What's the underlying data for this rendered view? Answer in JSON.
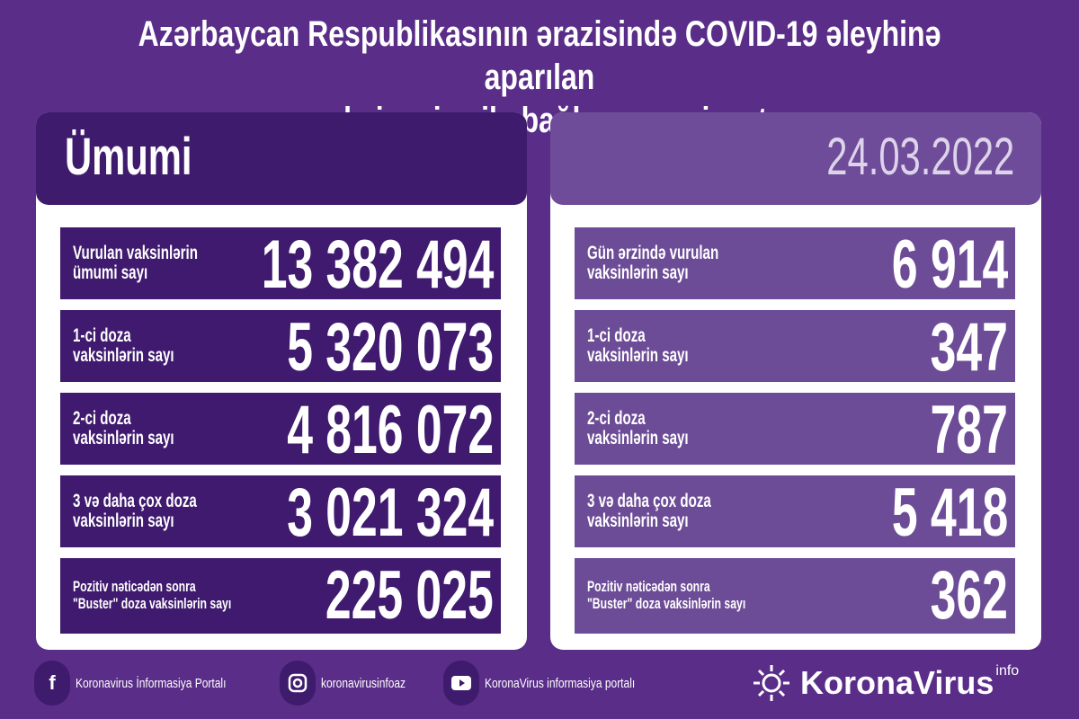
{
  "title": {
    "line1": "Azərbaycan Respublikasının ərazisində COVID-19 əleyhinə aparılan",
    "line2": "vaksinasiya ilə bağlı son vəziyyət"
  },
  "left": {
    "header": "Ümumi",
    "rows": [
      {
        "label1": "Vurulan vaksinlərin",
        "label2": "ümumi sayı",
        "value": "13 382 494"
      },
      {
        "label1": "1-ci doza",
        "label2": "vaksinlərin sayı",
        "value": "5 320 073"
      },
      {
        "label1": "2-ci doza",
        "label2": "vaksinlərin sayı",
        "value": "4 816 072"
      },
      {
        "label1": "3 və daha çox doza",
        "label2": "vaksinlərin sayı",
        "value": "3 021 324"
      },
      {
        "label1": "Pozitiv nəticədən sonra",
        "label2": "\"Buster\" doza vaksinlərin sayı",
        "value": "225 025"
      }
    ]
  },
  "right": {
    "header": "24.03.2022",
    "rows": [
      {
        "label1": "Gün ərzində vurulan",
        "label2": "vaksinlərin sayı",
        "value": "6 914"
      },
      {
        "label1": "1-ci doza",
        "label2": "vaksinlərin sayı",
        "value": "347"
      },
      {
        "label1": "2-ci doza",
        "label2": "vaksinlərin sayı",
        "value": "787"
      },
      {
        "label1": "3 və daha çox doza",
        "label2": "vaksinlərin sayı",
        "value": "5 418"
      },
      {
        "label1": "Pozitiv nəticədən sonra",
        "label2": "\"Buster\" doza vaksinlərin sayı",
        "value": "362"
      }
    ]
  },
  "footer": {
    "facebook": "Koronavirus İnformasiya Portalı",
    "instagram": "koronavirusinfoaz",
    "youtube": "KoronaVirus informasiya portalı",
    "logo": "KoronaVirus",
    "logo_sup": "info"
  },
  "colors": {
    "background": "#5a2d88",
    "dark_row": "#3f1a6e",
    "light_row": "#6d4c97"
  }
}
